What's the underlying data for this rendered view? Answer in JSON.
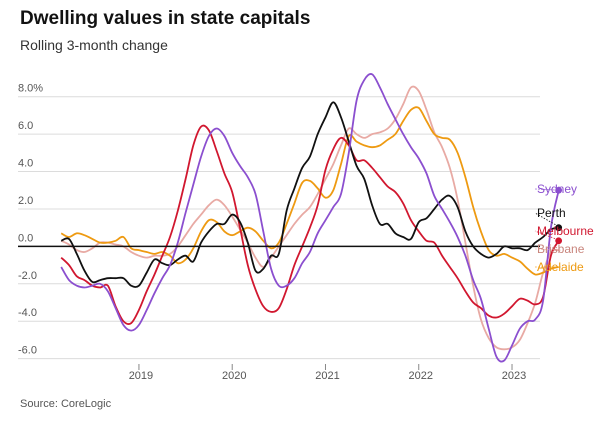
{
  "header": {
    "title": "Dwelling values in state capitals",
    "subtitle": "Rolling 3-month change"
  },
  "footer": {
    "source": "Source: CoreLogic"
  },
  "colors": {
    "Sydney": "#8b4fcf",
    "Perth": "#111111",
    "Melbourne": "#d1172f",
    "Brisbane": "#e8aaa4",
    "Adelaide": "#ee9a11",
    "grid": "#dcdcdc",
    "zero_line": "#111111"
  },
  "chart_data": {
    "type": "line",
    "title": "Dwelling values in state capitals",
    "subtitle": "Rolling 3-month change",
    "xlabel": "",
    "ylabel": "",
    "unit": "%",
    "x_start_label": "2018-03",
    "xlim": [
      2018.1,
      2023.3
    ],
    "ylim": [
      -6.5,
      9.0
    ],
    "x_ticks": [
      {
        "value": 2019,
        "label": "2019"
      },
      {
        "value": 2020,
        "label": "2020"
      },
      {
        "value": 2021,
        "label": "2021"
      },
      {
        "value": 2022,
        "label": "2022"
      },
      {
        "value": 2023,
        "label": "2023"
      }
    ],
    "y_ticks": [
      {
        "value": 8,
        "label": "8.0%"
      },
      {
        "value": 6,
        "label": "6.0"
      },
      {
        "value": 4,
        "label": "4.0"
      },
      {
        "value": 2,
        "label": "2.0"
      },
      {
        "value": 0,
        "label": "0.0"
      },
      {
        "value": -2,
        "label": "-2.0"
      },
      {
        "value": -4,
        "label": "-4.0"
      },
      {
        "value": -6,
        "label": "-6.0"
      }
    ],
    "grid": true,
    "legend": "end-of-line labels, right",
    "series": [
      {
        "name": "Sydney",
        "values": [
          -1.1,
          -1.8,
          -2.1,
          -2.2,
          -2.1,
          -2.0,
          -2.4,
          -3.3,
          -4.2,
          -4.5,
          -4.2,
          -3.4,
          -2.5,
          -1.7,
          -1.0,
          0.2,
          1.8,
          3.3,
          4.8,
          5.9,
          6.3,
          5.9,
          5.0,
          4.3,
          3.7,
          2.8,
          0.8,
          -1.2,
          -2.1,
          -2.1,
          -1.7,
          -0.9,
          -0.3,
          0.7,
          1.4,
          2.1,
          2.8,
          5.0,
          7.8,
          8.9,
          9.2,
          8.5,
          7.6,
          6.8,
          6.0,
          5.3,
          4.7,
          3.9,
          2.7,
          2.0,
          1.3,
          0.5,
          -0.5,
          -1.8,
          -2.8,
          -4.4,
          -5.9,
          -6.1,
          -5.3,
          -4.4,
          -4.0,
          -3.9,
          -2.9,
          1.0,
          3.0
        ]
      },
      {
        "name": "Perth",
        "values": [
          0.3,
          0.4,
          -0.4,
          -1.3,
          -1.9,
          -1.8,
          -1.7,
          -1.7,
          -1.7,
          -2.1,
          -2.1,
          -1.4,
          -0.7,
          -0.9,
          -1.0,
          -0.7,
          -0.5,
          -0.8,
          0.2,
          0.8,
          1.2,
          1.2,
          1.7,
          1.3,
          0.2,
          -1.3,
          -1.2,
          -0.5,
          -0.4,
          1.9,
          3.1,
          4.2,
          4.8,
          6.0,
          6.9,
          7.7,
          6.9,
          5.6,
          4.3,
          3.6,
          2.2,
          1.2,
          1.2,
          0.7,
          0.5,
          0.4,
          1.3,
          1.5,
          2.0,
          2.5,
          2.7,
          2.1,
          0.8,
          0.0,
          -0.4,
          -0.6,
          -0.4,
          0.0,
          -0.1,
          -0.1,
          -0.2,
          0.2,
          0.5,
          0.9,
          1.0
        ]
      },
      {
        "name": "Melbourne",
        "values": [
          -0.6,
          -1.0,
          -1.6,
          -1.8,
          -2.1,
          -2.2,
          -2.1,
          -3.2,
          -4.0,
          -4.1,
          -3.4,
          -2.4,
          -1.5,
          -0.5,
          0.5,
          1.9,
          3.6,
          5.4,
          6.4,
          6.2,
          5.1,
          3.9,
          2.9,
          1.0,
          -1.0,
          -2.3,
          -3.2,
          -3.5,
          -3.3,
          -2.3,
          -1.0,
          0.0,
          1.0,
          2.2,
          4.1,
          5.2,
          5.8,
          5.4,
          4.6,
          4.6,
          4.2,
          3.7,
          3.2,
          2.9,
          2.3,
          1.4,
          0.8,
          0.3,
          0.2,
          -0.5,
          -1.1,
          -1.7,
          -2.4,
          -3.0,
          -3.3,
          -3.7,
          -3.8,
          -3.6,
          -3.2,
          -2.8,
          -2.9,
          -3.1,
          -2.7,
          -0.5,
          0.3
        ]
      },
      {
        "name": "Brisbane",
        "values": [
          0.3,
          0.1,
          -0.2,
          -0.3,
          -0.1,
          0.2,
          0.2,
          0.1,
          0.0,
          -0.3,
          -0.5,
          -0.6,
          -0.5,
          -0.5,
          -0.4,
          0.0,
          0.6,
          1.2,
          1.7,
          2.2,
          2.5,
          2.2,
          1.6,
          0.9,
          0.2,
          -0.6,
          -1.1,
          -0.6,
          0.0,
          0.6,
          1.2,
          1.7,
          2.1,
          2.8,
          3.6,
          4.4,
          5.4,
          6.3,
          6.0,
          5.8,
          6.0,
          6.1,
          6.3,
          6.8,
          7.6,
          8.5,
          8.3,
          7.3,
          6.1,
          5.3,
          4.2,
          2.5,
          0.2,
          -2.1,
          -3.9,
          -4.9,
          -5.4,
          -5.5,
          -5.4,
          -5.0,
          -4.1,
          -3.0,
          -1.4,
          -0.3,
          -0.2
        ]
      },
      {
        "name": "Adelaide",
        "values": [
          0.7,
          0.5,
          0.7,
          0.6,
          0.4,
          0.2,
          0.2,
          0.3,
          0.5,
          -0.1,
          -0.2,
          -0.3,
          -0.4,
          -0.3,
          -0.5,
          -0.9,
          -0.7,
          -0.1,
          0.8,
          1.4,
          1.3,
          0.8,
          0.6,
          0.8,
          1.0,
          0.8,
          0.3,
          -0.1,
          0.2,
          1.2,
          2.3,
          3.4,
          3.5,
          3.1,
          2.6,
          3.0,
          4.4,
          5.9,
          5.6,
          5.4,
          5.3,
          5.4,
          5.7,
          6.0,
          6.7,
          7.3,
          7.4,
          6.7,
          6.0,
          5.8,
          5.7,
          5.0,
          3.7,
          2.1,
          0.8,
          -0.2,
          -0.5,
          -0.4,
          -0.6,
          -0.8,
          -1.2,
          -1.5,
          -1.4,
          -1.2,
          -1.1
        ]
      }
    ],
    "end_labels": [
      {
        "name": "Sydney",
        "text": "Sydney"
      },
      {
        "name": "Perth",
        "text": "Perth"
      },
      {
        "name": "Melbourne",
        "text": "Melbourne"
      },
      {
        "name": "Brisbane",
        "text": "Brisbane"
      },
      {
        "name": "Adelaide",
        "text": "Adelaide"
      }
    ],
    "end_markers": [
      "Sydney",
      "Perth",
      "Melbourne"
    ]
  }
}
